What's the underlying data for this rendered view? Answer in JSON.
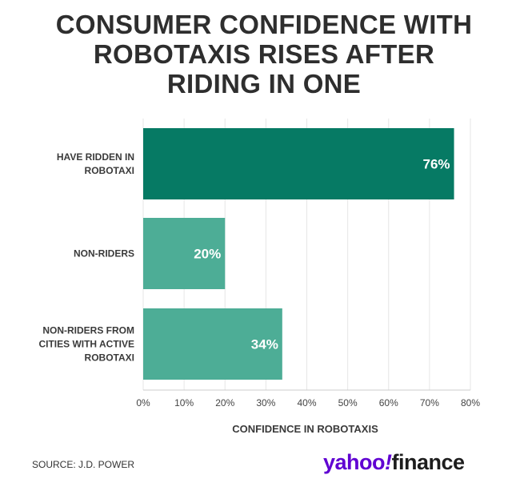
{
  "title_lines": [
    "CONSUMER CONFIDENCE WITH",
    "ROBOTAXIS RISES AFTER",
    "RIDING IN ONE"
  ],
  "source": "SOURCE: J.D. POWER",
  "logo": {
    "part1": "yahoo",
    "mark": "!",
    "part2": "finance"
  },
  "colors": {
    "primary_bar": "#067a64",
    "secondary_bar": "#4dad96",
    "logo_purple": "#6001d2",
    "grid": "#e6e6e6"
  },
  "chart_data": {
    "type": "bar",
    "orientation": "horizontal",
    "categories": [
      [
        "HAVE RIDDEN IN",
        "ROBOTAXI"
      ],
      [
        "NON-RIDERS"
      ],
      [
        "NON-RIDERS FROM",
        "CITIES WITH ACTIVE",
        "ROBOTAXI"
      ]
    ],
    "values": [
      76,
      20,
      34
    ],
    "value_labels": [
      "76%",
      "20%",
      "34%"
    ],
    "xlabel": "CONFIDENCE IN ROBOTAXIS",
    "xlim": [
      0,
      80
    ],
    "xticks": [
      "0%",
      "10%",
      "20%",
      "30%",
      "40%",
      "50%",
      "60%",
      "70%",
      "80%"
    ],
    "grid": true,
    "bar_colors": [
      "#067a64",
      "#4dad96",
      "#4dad96"
    ]
  }
}
